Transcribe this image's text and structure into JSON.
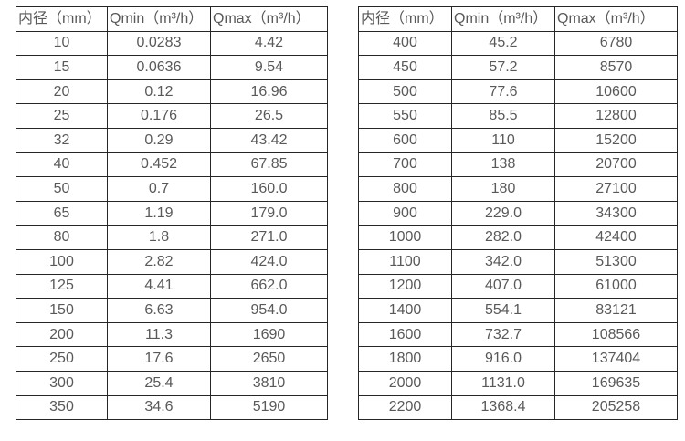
{
  "colors": {
    "background": "#ffffff",
    "border": "#262626",
    "text": "#595959"
  },
  "tables": {
    "left": {
      "headers": [
        "内径（mm）",
        "Qmin（m³/h）",
        "Qmax（m³/h）"
      ],
      "rows": [
        [
          "10",
          "0.0283",
          "4.42"
        ],
        [
          "15",
          "0.0636",
          "9.54"
        ],
        [
          "20",
          "0.12",
          "16.96"
        ],
        [
          "25",
          "0.176",
          "26.5"
        ],
        [
          "32",
          "0.29",
          "43.42"
        ],
        [
          "40",
          "0.452",
          "67.85"
        ],
        [
          "50",
          "0.7",
          "160.0"
        ],
        [
          "65",
          "1.19",
          "179.0"
        ],
        [
          "80",
          "1.8",
          "271.0"
        ],
        [
          "100",
          "2.82",
          "424.0"
        ],
        [
          "125",
          "4.41",
          "662.0"
        ],
        [
          "150",
          "6.63",
          "954.0"
        ],
        [
          "200",
          "11.3",
          "1690"
        ],
        [
          "250",
          "17.6",
          "2650"
        ],
        [
          "300",
          "25.4",
          "3810"
        ],
        [
          "350",
          "34.6",
          "5190"
        ]
      ]
    },
    "right": {
      "headers": [
        "内径（mm）",
        "Qmin（m³/h）",
        "Qmax（m³/h）"
      ],
      "rows": [
        [
          "400",
          "45.2",
          "6780"
        ],
        [
          "450",
          "57.2",
          "8570"
        ],
        [
          "500",
          "77.6",
          "10600"
        ],
        [
          "550",
          "85.5",
          "12800"
        ],
        [
          "600",
          "110",
          "15200"
        ],
        [
          "700",
          "138",
          "20700"
        ],
        [
          "800",
          "180",
          "27100"
        ],
        [
          "900",
          "229.0",
          "34300"
        ],
        [
          "1000",
          "282.0",
          "42400"
        ],
        [
          "1100",
          "342.0",
          "51300"
        ],
        [
          "1200",
          "407.0",
          "61000"
        ],
        [
          "1400",
          "554.1",
          "83121"
        ],
        [
          "1600",
          "732.7",
          "108566"
        ],
        [
          "1800",
          "916.0",
          "137404"
        ],
        [
          "2000",
          "1131.0",
          "169635"
        ],
        [
          "2200",
          "1368.4",
          "205258"
        ]
      ]
    }
  }
}
